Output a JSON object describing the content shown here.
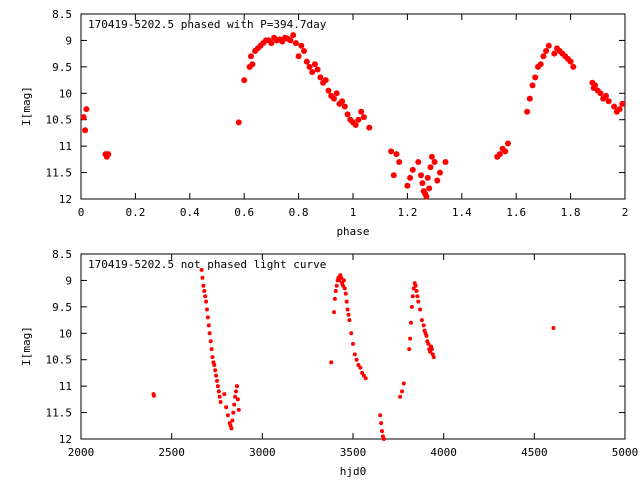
{
  "marker_color": "#ff0000",
  "chart_data": [
    {
      "type": "scatter",
      "title": "170419-5202.5 phased with P=394.7day",
      "xlabel": "phase",
      "ylabel": "I[mag]",
      "xlim": [
        0,
        2
      ],
      "ylim": [
        12,
        8.5
      ],
      "y_inverted": true,
      "xticks": [
        "0",
        "0.2",
        "0.4",
        "0.6",
        "0.8",
        "1",
        "1.2",
        "1.4",
        "1.6",
        "1.8",
        "2"
      ],
      "xtick_values": [
        0,
        0.2,
        0.4,
        0.6,
        0.8,
        1,
        1.2,
        1.4,
        1.6,
        1.8,
        2
      ],
      "yticks": [
        "8.5",
        "9",
        "9.5",
        "10",
        "10.5",
        "11",
        "11.5",
        "12"
      ],
      "ytick_values": [
        8.5,
        9,
        9.5,
        10,
        10.5,
        11,
        11.5,
        12
      ],
      "marker": "filled-circle",
      "series": [
        {
          "x": [
            0.01,
            0.015,
            0.02,
            0.09,
            0.095,
            0.1,
            0.58,
            0.6,
            0.62,
            0.625,
            0.63,
            0.64,
            0.65,
            0.66,
            0.67,
            0.68,
            0.69,
            0.7,
            0.71,
            0.72,
            0.73,
            0.74,
            0.75,
            0.76,
            0.77,
            0.78,
            0.79,
            0.8,
            0.81,
            0.82,
            0.83,
            0.84,
            0.85,
            0.86,
            0.87,
            0.88,
            0.89,
            0.9,
            0.91,
            0.92,
            0.93,
            0.94,
            0.95,
            0.96,
            0.97,
            0.98,
            0.99,
            1.0,
            1.01,
            1.02,
            1.03,
            1.04,
            1.06,
            1.14,
            1.15,
            1.16,
            1.17,
            1.2,
            1.21,
            1.22,
            1.24,
            1.25,
            1.255,
            1.26,
            1.265,
            1.27,
            1.275,
            1.28,
            1.285,
            1.29,
            1.3,
            1.31,
            1.32,
            1.34,
            1.53,
            1.54,
            1.55,
            1.56,
            1.57,
            1.64,
            1.65,
            1.66,
            1.67,
            1.68,
            1.69,
            1.7,
            1.71,
            1.72,
            1.74,
            1.75,
            1.76,
            1.77,
            1.78,
            1.79,
            1.8,
            1.81,
            1.88,
            1.885,
            1.89,
            1.9,
            1.91,
            1.92,
            1.93,
            1.94,
            1.96,
            1.97,
            1.98,
            1.99
          ],
          "y": [
            10.45,
            10.7,
            10.3,
            11.15,
            11.2,
            11.15,
            10.55,
            9.75,
            9.5,
            9.3,
            9.45,
            9.2,
            9.15,
            9.1,
            9.05,
            9.0,
            9.0,
            9.05,
            8.95,
            9.0,
            8.98,
            9.02,
            8.95,
            8.97,
            9.0,
            8.9,
            9.05,
            9.3,
            9.1,
            9.2,
            9.4,
            9.5,
            9.6,
            9.45,
            9.55,
            9.7,
            9.8,
            9.75,
            9.95,
            10.05,
            10.1,
            10.0,
            10.2,
            10.15,
            10.25,
            10.4,
            10.5,
            10.55,
            10.6,
            10.5,
            10.35,
            10.45,
            10.65,
            11.1,
            11.55,
            11.15,
            11.3,
            11.75,
            11.6,
            11.45,
            11.3,
            11.55,
            11.7,
            11.85,
            11.9,
            11.95,
            11.6,
            11.8,
            11.4,
            11.2,
            11.3,
            11.65,
            11.5,
            11.3,
            11.2,
            11.15,
            11.05,
            11.1,
            10.95,
            10.35,
            10.1,
            9.85,
            9.7,
            9.5,
            9.45,
            9.3,
            9.2,
            9.1,
            9.25,
            9.15,
            9.2,
            9.25,
            9.3,
            9.35,
            9.4,
            9.5,
            9.8,
            9.9,
            9.85,
            9.95,
            10.0,
            10.1,
            10.05,
            10.15,
            10.25,
            10.35,
            10.3,
            10.2
          ]
        }
      ]
    },
    {
      "type": "scatter",
      "title": "170419-5202.5 not phased light curve",
      "xlabel": "hjd0",
      "ylabel": "I[mag]",
      "xlim": [
        2000,
        5000
      ],
      "ylim": [
        12,
        8.5
      ],
      "y_inverted": true,
      "xticks": [
        "2000",
        "2500",
        "3000",
        "3500",
        "4000",
        "4500",
        "5000"
      ],
      "xtick_values": [
        2000,
        2500,
        3000,
        3500,
        4000,
        4500,
        5000
      ],
      "yticks": [
        "8.5",
        "9",
        "9.5",
        "10",
        "10.5",
        "11",
        "11.5",
        "12"
      ],
      "ytick_values": [
        8.5,
        9,
        9.5,
        10,
        10.5,
        11,
        11.5,
        12
      ],
      "marker": "filled-circle",
      "series": [
        {
          "x": [
            2400,
            2402,
            2665,
            2670,
            2675,
            2680,
            2685,
            2690,
            2695,
            2700,
            2705,
            2710,
            2715,
            2720,
            2725,
            2730,
            2735,
            2740,
            2745,
            2750,
            2755,
            2760,
            2765,
            2770,
            2790,
            2800,
            2810,
            2820,
            2825,
            2830,
            2835,
            2840,
            2845,
            2850,
            2855,
            2860,
            2865,
            2870,
            3380,
            3395,
            3400,
            3405,
            3410,
            3415,
            3420,
            3425,
            3430,
            3435,
            3440,
            3445,
            3450,
            3455,
            3460,
            3465,
            3470,
            3475,
            3480,
            3490,
            3500,
            3510,
            3520,
            3530,
            3540,
            3550,
            3560,
            3570,
            3650,
            3655,
            3660,
            3665,
            3670,
            3760,
            3770,
            3780,
            3810,
            3815,
            3820,
            3825,
            3830,
            3835,
            3840,
            3845,
            3850,
            3855,
            3860,
            3870,
            3880,
            3890,
            3895,
            3900,
            3905,
            3910,
            3915,
            3920,
            3925,
            3930,
            3935,
            3940,
            3945,
            4605
          ],
          "y": [
            11.15,
            11.18,
            8.8,
            8.95,
            9.1,
            9.2,
            9.3,
            9.4,
            9.55,
            9.7,
            9.85,
            10.0,
            10.15,
            10.3,
            10.45,
            10.55,
            10.6,
            10.7,
            10.8,
            10.9,
            11.0,
            11.1,
            11.2,
            11.3,
            11.15,
            11.4,
            11.55,
            11.7,
            11.75,
            11.8,
            11.65,
            11.5,
            11.35,
            11.2,
            11.1,
            11.0,
            11.25,
            11.45,
            10.55,
            9.6,
            9.35,
            9.2,
            9.1,
            9.0,
            8.95,
            9.0,
            8.9,
            8.95,
            9.05,
            9.1,
            9.0,
            9.15,
            9.25,
            9.4,
            9.55,
            9.65,
            9.75,
            10.0,
            10.2,
            10.4,
            10.5,
            10.6,
            10.65,
            10.75,
            10.8,
            10.85,
            11.55,
            11.7,
            11.85,
            11.95,
            12.0,
            11.2,
            11.1,
            10.95,
            10.3,
            10.1,
            9.8,
            9.5,
            9.3,
            9.15,
            9.05,
            9.1,
            9.2,
            9.3,
            9.4,
            9.55,
            9.75,
            9.85,
            9.95,
            10.0,
            10.05,
            10.15,
            10.2,
            10.3,
            10.35,
            10.25,
            10.3,
            10.4,
            10.45,
            9.9
          ]
        }
      ]
    }
  ]
}
